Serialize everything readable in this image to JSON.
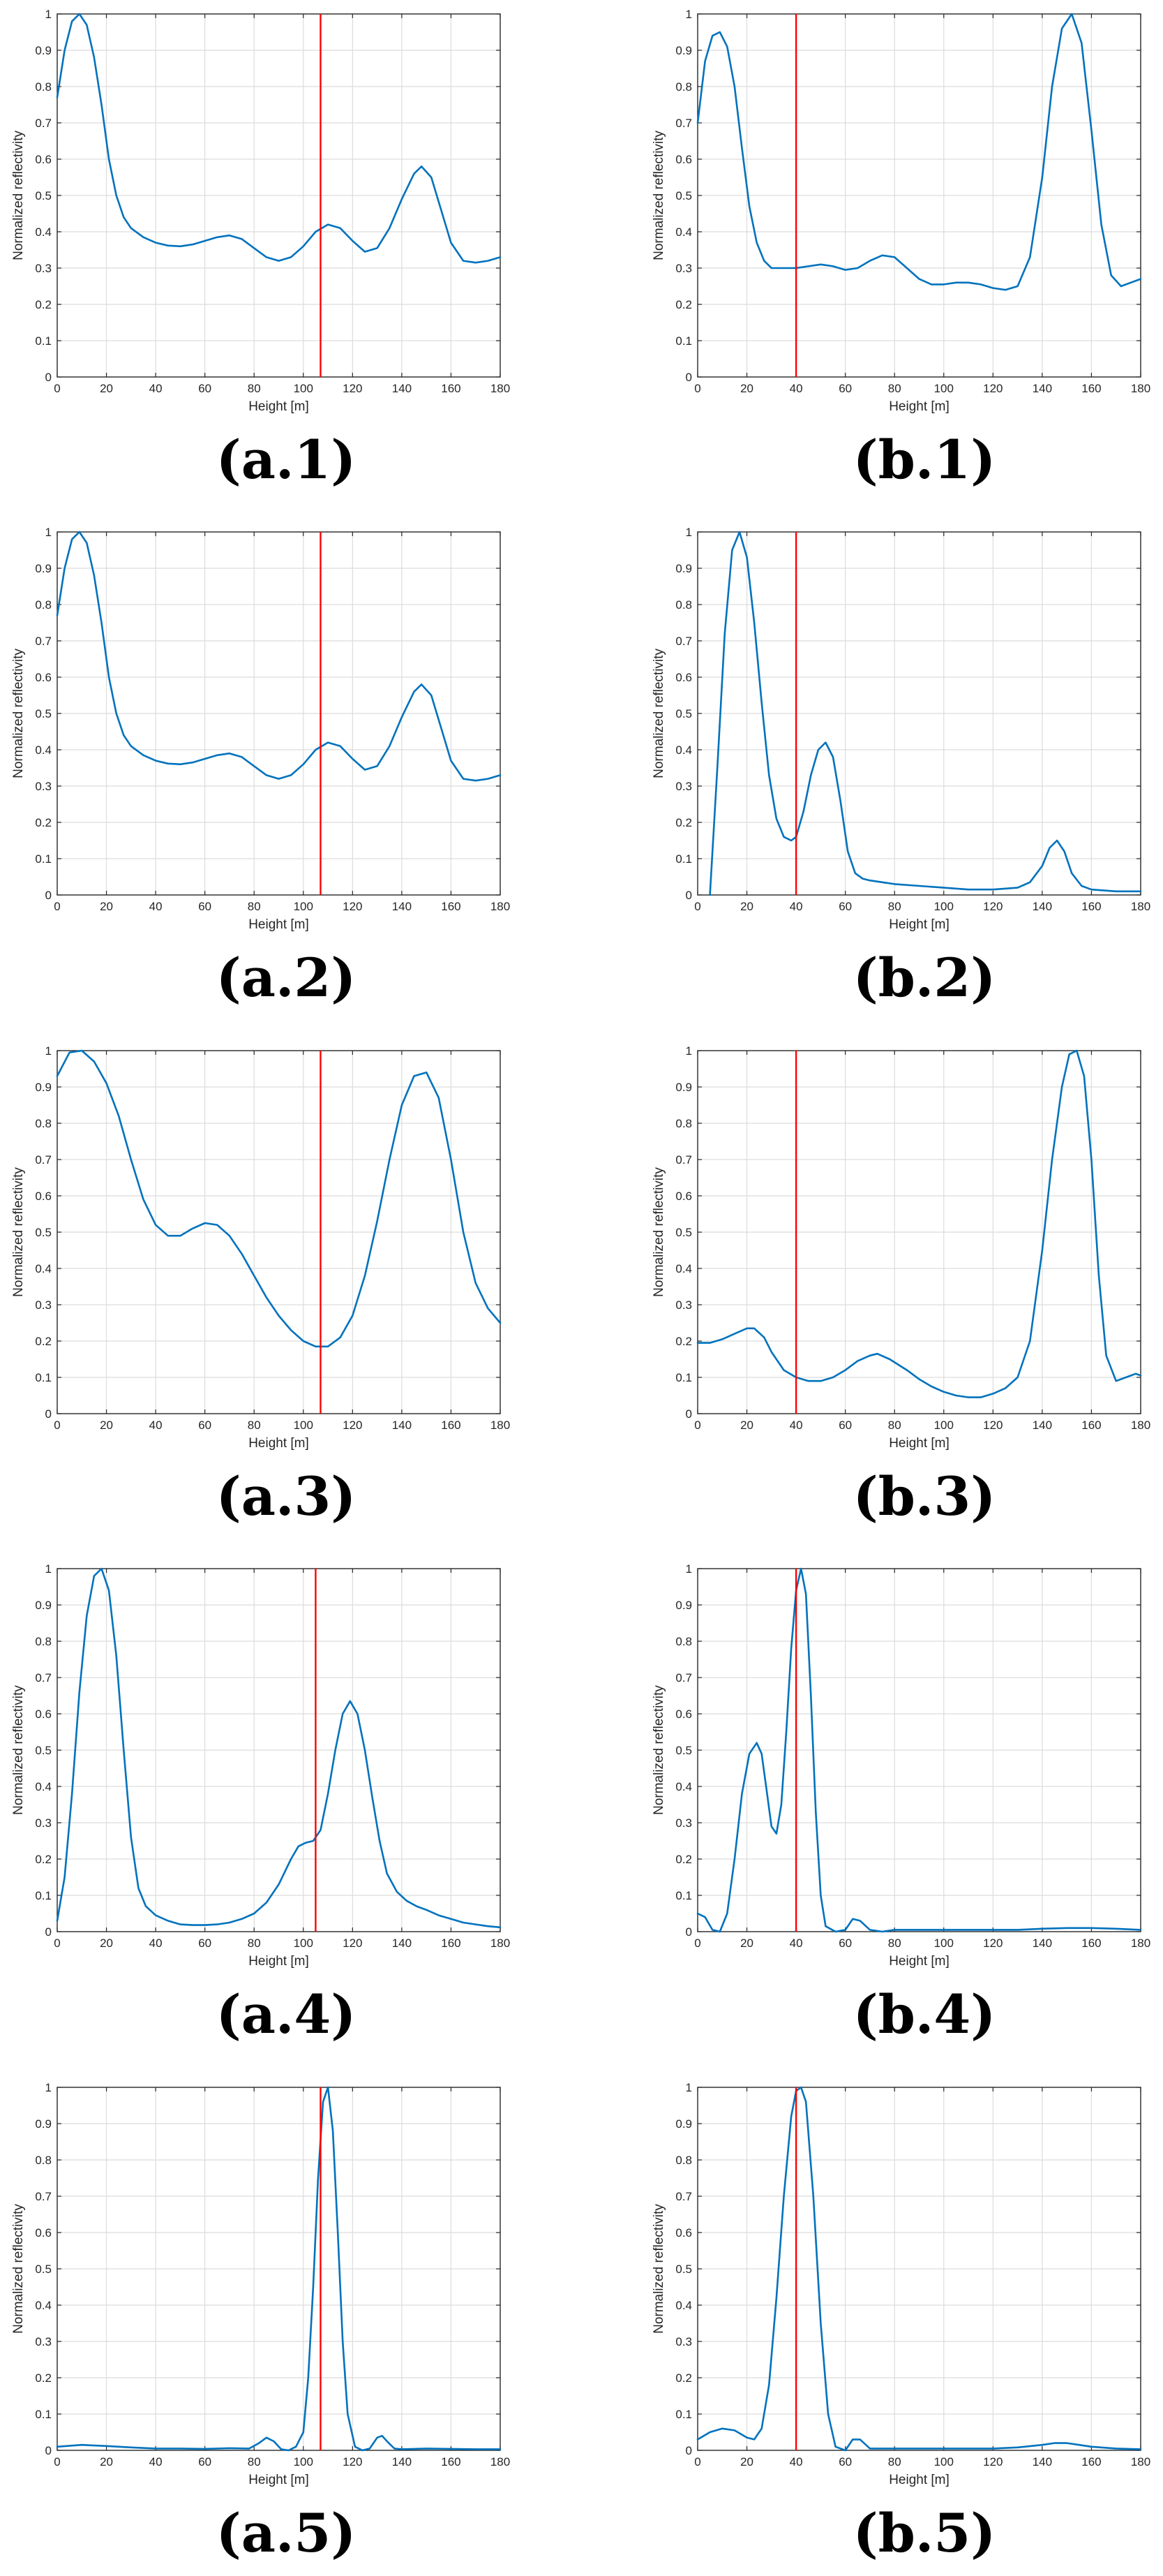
{
  "chart_data": [
    {
      "type": "line",
      "panel": "(a.1)",
      "xlabel": "Height [m]",
      "ylabel": "Normalized reflectivity",
      "xlim": [
        0,
        180
      ],
      "ylim": [
        0,
        1
      ],
      "xticks": [
        0,
        20,
        40,
        60,
        80,
        100,
        120,
        140,
        160,
        180
      ],
      "yticks": [
        0,
        0.1,
        0.2,
        0.3,
        0.4,
        0.5,
        0.6,
        0.7,
        0.8,
        0.9,
        1
      ],
      "grid": true,
      "series_color": "#0072BD",
      "marker_line": {
        "x": 107,
        "color": "#FF0000"
      },
      "x": [
        0,
        3,
        6,
        9,
        12,
        15,
        18,
        21,
        24,
        27,
        30,
        35,
        40,
        45,
        50,
        55,
        60,
        65,
        70,
        75,
        80,
        85,
        90,
        95,
        100,
        105,
        110,
        115,
        120,
        125,
        130,
        135,
        140,
        145,
        148,
        152,
        156,
        160,
        165,
        170,
        175,
        180
      ],
      "y": [
        0.77,
        0.9,
        0.98,
        1.0,
        0.97,
        0.88,
        0.75,
        0.6,
        0.5,
        0.44,
        0.41,
        0.385,
        0.37,
        0.362,
        0.36,
        0.365,
        0.375,
        0.385,
        0.39,
        0.38,
        0.355,
        0.33,
        0.32,
        0.33,
        0.36,
        0.4,
        0.42,
        0.41,
        0.375,
        0.345,
        0.355,
        0.41,
        0.49,
        0.56,
        0.58,
        0.55,
        0.46,
        0.37,
        0.32,
        0.315,
        0.32,
        0.33
      ]
    },
    {
      "type": "line",
      "panel": "(b.1)",
      "xlabel": "Height [m]",
      "ylabel": "Normalized reflectivity",
      "xlim": [
        0,
        180
      ],
      "ylim": [
        0,
        1
      ],
      "xticks": [
        0,
        20,
        40,
        60,
        80,
        100,
        120,
        140,
        160,
        180
      ],
      "yticks": [
        0,
        0.1,
        0.2,
        0.3,
        0.4,
        0.5,
        0.6,
        0.7,
        0.8,
        0.9,
        1
      ],
      "grid": true,
      "series_color": "#0072BD",
      "marker_line": {
        "x": 40,
        "color": "#FF0000"
      },
      "x": [
        0,
        3,
        6,
        9,
        12,
        15,
        18,
        21,
        24,
        27,
        30,
        35,
        40,
        45,
        50,
        55,
        60,
        65,
        70,
        75,
        80,
        85,
        90,
        95,
        100,
        105,
        110,
        115,
        120,
        125,
        130,
        135,
        140,
        144,
        148,
        152,
        156,
        160,
        164,
        168,
        172,
        176,
        180
      ],
      "y": [
        0.7,
        0.87,
        0.94,
        0.95,
        0.91,
        0.8,
        0.63,
        0.47,
        0.37,
        0.32,
        0.3,
        0.3,
        0.3,
        0.305,
        0.31,
        0.305,
        0.295,
        0.3,
        0.32,
        0.335,
        0.33,
        0.3,
        0.27,
        0.255,
        0.255,
        0.26,
        0.26,
        0.255,
        0.245,
        0.24,
        0.25,
        0.33,
        0.55,
        0.8,
        0.96,
        1.0,
        0.92,
        0.68,
        0.42,
        0.28,
        0.25,
        0.26,
        0.27
      ]
    },
    {
      "type": "line",
      "panel": "(a.2)",
      "xlabel": "Height [m]",
      "ylabel": "Normalized reflectivity",
      "xlim": [
        0,
        180
      ],
      "ylim": [
        0,
        1
      ],
      "xticks": [
        0,
        20,
        40,
        60,
        80,
        100,
        120,
        140,
        160,
        180
      ],
      "yticks": [
        0,
        0.1,
        0.2,
        0.3,
        0.4,
        0.5,
        0.6,
        0.7,
        0.8,
        0.9,
        1
      ],
      "grid": true,
      "series_color": "#0072BD",
      "marker_line": {
        "x": 107,
        "color": "#FF0000"
      },
      "x": [
        0,
        3,
        6,
        9,
        12,
        15,
        18,
        21,
        24,
        27,
        30,
        35,
        40,
        45,
        50,
        55,
        60,
        65,
        70,
        75,
        80,
        85,
        90,
        95,
        100,
        105,
        110,
        115,
        120,
        125,
        130,
        135,
        140,
        145,
        148,
        152,
        156,
        160,
        165,
        170,
        175,
        180
      ],
      "y": [
        0.77,
        0.9,
        0.98,
        1.0,
        0.97,
        0.88,
        0.75,
        0.6,
        0.5,
        0.44,
        0.41,
        0.385,
        0.37,
        0.362,
        0.36,
        0.365,
        0.375,
        0.385,
        0.39,
        0.38,
        0.355,
        0.33,
        0.32,
        0.33,
        0.36,
        0.4,
        0.42,
        0.41,
        0.375,
        0.345,
        0.355,
        0.41,
        0.49,
        0.56,
        0.58,
        0.55,
        0.46,
        0.37,
        0.32,
        0.315,
        0.32,
        0.33
      ]
    },
    {
      "type": "line",
      "panel": "(b.2)",
      "xlabel": "Height [m]",
      "ylabel": "Normalized reflectivity",
      "xlim": [
        0,
        180
      ],
      "ylim": [
        0,
        1
      ],
      "xticks": [
        0,
        20,
        40,
        60,
        80,
        100,
        120,
        140,
        160,
        180
      ],
      "yticks": [
        0,
        0.1,
        0.2,
        0.3,
        0.4,
        0.5,
        0.6,
        0.7,
        0.8,
        0.9,
        1
      ],
      "grid": true,
      "series_color": "#0072BD",
      "marker_line": {
        "x": 40,
        "color": "#FF0000"
      },
      "x": [
        5,
        8,
        11,
        14,
        17,
        20,
        23,
        26,
        29,
        32,
        35,
        38,
        40,
        43,
        46,
        49,
        52,
        55,
        58,
        61,
        64,
        67,
        70,
        80,
        90,
        100,
        110,
        120,
        130,
        135,
        140,
        143,
        146,
        149,
        152,
        156,
        160,
        170,
        180
      ],
      "y": [
        0.0,
        0.35,
        0.72,
        0.95,
        1.0,
        0.93,
        0.75,
        0.53,
        0.33,
        0.21,
        0.16,
        0.15,
        0.16,
        0.23,
        0.33,
        0.4,
        0.42,
        0.38,
        0.26,
        0.12,
        0.06,
        0.045,
        0.04,
        0.03,
        0.025,
        0.02,
        0.015,
        0.015,
        0.02,
        0.035,
        0.08,
        0.13,
        0.15,
        0.12,
        0.06,
        0.025,
        0.015,
        0.01,
        0.01
      ]
    },
    {
      "type": "line",
      "panel": "(a.3)",
      "xlabel": "Height [m]",
      "ylabel": "Normalized reflectivity",
      "xlim": [
        0,
        180
      ],
      "ylim": [
        0,
        1
      ],
      "xticks": [
        0,
        20,
        40,
        60,
        80,
        100,
        120,
        140,
        160,
        180
      ],
      "yticks": [
        0,
        0.1,
        0.2,
        0.3,
        0.4,
        0.5,
        0.6,
        0.7,
        0.8,
        0.9,
        1
      ],
      "grid": true,
      "series_color": "#0072BD",
      "marker_line": {
        "x": 107,
        "color": "#FF0000"
      },
      "x": [
        0,
        5,
        10,
        15,
        20,
        25,
        30,
        35,
        40,
        45,
        50,
        55,
        60,
        65,
        70,
        75,
        80,
        85,
        90,
        95,
        100,
        105,
        110,
        115,
        120,
        125,
        130,
        135,
        140,
        145,
        150,
        155,
        160,
        165,
        170,
        175,
        180
      ],
      "y": [
        0.93,
        0.995,
        1.0,
        0.97,
        0.91,
        0.82,
        0.7,
        0.59,
        0.52,
        0.49,
        0.49,
        0.51,
        0.525,
        0.52,
        0.49,
        0.44,
        0.38,
        0.32,
        0.27,
        0.23,
        0.2,
        0.185,
        0.185,
        0.21,
        0.27,
        0.38,
        0.53,
        0.7,
        0.85,
        0.93,
        0.94,
        0.87,
        0.7,
        0.5,
        0.36,
        0.29,
        0.25
      ]
    },
    {
      "type": "line",
      "panel": "(b.3)",
      "xlabel": "Height [m]",
      "ylabel": "Normalized reflectivity",
      "xlim": [
        0,
        180
      ],
      "ylim": [
        0,
        1
      ],
      "xticks": [
        0,
        20,
        40,
        60,
        80,
        100,
        120,
        140,
        160,
        180
      ],
      "yticks": [
        0,
        0.1,
        0.2,
        0.3,
        0.4,
        0.5,
        0.6,
        0.7,
        0.8,
        0.9,
        1
      ],
      "grid": true,
      "series_color": "#0072BD",
      "marker_line": {
        "x": 40,
        "color": "#FF0000"
      },
      "x": [
        0,
        5,
        10,
        15,
        20,
        23,
        27,
        30,
        35,
        40,
        45,
        50,
        55,
        60,
        65,
        70,
        73,
        78,
        85,
        90,
        95,
        100,
        105,
        110,
        115,
        120,
        125,
        130,
        135,
        140,
        144,
        148,
        151,
        154,
        157,
        160,
        163,
        166,
        170,
        174,
        178,
        180
      ],
      "y": [
        0.195,
        0.195,
        0.205,
        0.22,
        0.235,
        0.235,
        0.21,
        0.17,
        0.12,
        0.1,
        0.09,
        0.09,
        0.1,
        0.12,
        0.145,
        0.16,
        0.165,
        0.15,
        0.12,
        0.095,
        0.075,
        0.06,
        0.05,
        0.045,
        0.045,
        0.055,
        0.07,
        0.1,
        0.2,
        0.45,
        0.7,
        0.9,
        0.99,
        1.0,
        0.93,
        0.7,
        0.38,
        0.16,
        0.09,
        0.1,
        0.11,
        0.105
      ]
    },
    {
      "type": "line",
      "panel": "(a.4)",
      "xlabel": "Height [m]",
      "ylabel": "Normalized reflectivity",
      "xlim": [
        0,
        180
      ],
      "ylim": [
        0,
        1
      ],
      "xticks": [
        0,
        20,
        40,
        60,
        80,
        100,
        120,
        140,
        160,
        180
      ],
      "yticks": [
        0,
        0.1,
        0.2,
        0.3,
        0.4,
        0.5,
        0.6,
        0.7,
        0.8,
        0.9,
        1
      ],
      "grid": true,
      "series_color": "#0072BD",
      "marker_line": {
        "x": 105,
        "color": "#FF0000"
      },
      "x": [
        0,
        3,
        6,
        9,
        12,
        15,
        18,
        21,
        24,
        27,
        30,
        33,
        36,
        40,
        45,
        50,
        55,
        60,
        65,
        70,
        75,
        80,
        85,
        90,
        95,
        98,
        101,
        104,
        107,
        110,
        113,
        116,
        119,
        122,
        125,
        128,
        131,
        134,
        138,
        142,
        146,
        150,
        155,
        160,
        165,
        170,
        175,
        180
      ],
      "y": [
        0.03,
        0.15,
        0.38,
        0.66,
        0.87,
        0.98,
        1.0,
        0.94,
        0.76,
        0.5,
        0.26,
        0.12,
        0.07,
        0.045,
        0.03,
        0.02,
        0.018,
        0.018,
        0.02,
        0.025,
        0.035,
        0.05,
        0.08,
        0.13,
        0.2,
        0.235,
        0.245,
        0.25,
        0.28,
        0.38,
        0.5,
        0.6,
        0.635,
        0.6,
        0.5,
        0.37,
        0.25,
        0.16,
        0.11,
        0.085,
        0.07,
        0.06,
        0.045,
        0.035,
        0.025,
        0.02,
        0.015,
        0.012
      ]
    },
    {
      "type": "line",
      "panel": "(b.4)",
      "xlabel": "Height [m]",
      "ylabel": "Normalized reflectivity",
      "xlim": [
        0,
        180
      ],
      "ylim": [
        0,
        1
      ],
      "xticks": [
        0,
        20,
        40,
        60,
        80,
        100,
        120,
        140,
        160,
        180
      ],
      "yticks": [
        0,
        0.1,
        0.2,
        0.3,
        0.4,
        0.5,
        0.6,
        0.7,
        0.8,
        0.9,
        1
      ],
      "grid": true,
      "series_color": "#0072BD",
      "marker_line": {
        "x": 40,
        "color": "#FF0000"
      },
      "x": [
        0,
        3,
        6,
        9,
        12,
        15,
        18,
        21,
        24,
        26,
        28,
        30,
        32,
        34,
        36,
        38,
        40,
        42,
        44,
        46,
        48,
        50,
        52,
        56,
        60,
        63,
        66,
        70,
        75,
        80,
        90,
        100,
        110,
        120,
        130,
        140,
        150,
        160,
        170,
        180
      ],
      "y": [
        0.05,
        0.04,
        0.005,
        0.0,
        0.05,
        0.2,
        0.38,
        0.49,
        0.52,
        0.49,
        0.39,
        0.29,
        0.27,
        0.35,
        0.55,
        0.78,
        0.94,
        1.0,
        0.93,
        0.65,
        0.33,
        0.1,
        0.015,
        0.0,
        0.005,
        0.035,
        0.03,
        0.005,
        0.0,
        0.005,
        0.005,
        0.005,
        0.005,
        0.005,
        0.005,
        0.008,
        0.01,
        0.01,
        0.008,
        0.005
      ]
    },
    {
      "type": "line",
      "panel": "(a.5)",
      "xlabel": "Height [m]",
      "ylabel": "Normalized reflectivity",
      "xlim": [
        0,
        180
      ],
      "ylim": [
        0,
        1
      ],
      "xticks": [
        0,
        20,
        40,
        60,
        80,
        100,
        120,
        140,
        160,
        180
      ],
      "yticks": [
        0,
        0.1,
        0.2,
        0.3,
        0.4,
        0.5,
        0.6,
        0.7,
        0.8,
        0.9,
        1
      ],
      "grid": true,
      "series_color": "#0072BD",
      "marker_line": {
        "x": 107,
        "color": "#FF0000"
      },
      "x": [
        0,
        10,
        20,
        30,
        40,
        50,
        60,
        70,
        78,
        82,
        85,
        88,
        91,
        94,
        97,
        100,
        102,
        104,
        106,
        108,
        110,
        112,
        114,
        116,
        118,
        121,
        124,
        127,
        130,
        132,
        134,
        137,
        140,
        150,
        160,
        170,
        180
      ],
      "y": [
        0.01,
        0.015,
        0.012,
        0.008,
        0.005,
        0.005,
        0.004,
        0.006,
        0.005,
        0.02,
        0.035,
        0.025,
        0.003,
        0.0,
        0.01,
        0.05,
        0.2,
        0.45,
        0.75,
        0.96,
        1.0,
        0.88,
        0.6,
        0.3,
        0.1,
        0.01,
        0.0,
        0.005,
        0.035,
        0.04,
        0.025,
        0.005,
        0.003,
        0.005,
        0.004,
        0.003,
        0.003
      ]
    },
    {
      "type": "line",
      "panel": "(b.5)",
      "xlabel": "Height [m]",
      "ylabel": "Normalized reflectivity",
      "xlim": [
        0,
        180
      ],
      "ylim": [
        0,
        1
      ],
      "xticks": [
        0,
        20,
        40,
        60,
        80,
        100,
        120,
        140,
        160,
        180
      ],
      "yticks": [
        0,
        0.1,
        0.2,
        0.3,
        0.4,
        0.5,
        0.6,
        0.7,
        0.8,
        0.9,
        1
      ],
      "grid": true,
      "series_color": "#0072BD",
      "marker_line": {
        "x": 40,
        "color": "#FF0000"
      },
      "x": [
        0,
        5,
        10,
        15,
        20,
        23,
        26,
        29,
        32,
        35,
        38,
        40,
        42,
        44,
        47,
        50,
        53,
        56,
        60,
        63,
        66,
        70,
        80,
        90,
        100,
        110,
        120,
        130,
        140,
        145,
        150,
        155,
        160,
        170,
        180
      ],
      "y": [
        0.03,
        0.05,
        0.06,
        0.055,
        0.035,
        0.03,
        0.06,
        0.18,
        0.42,
        0.7,
        0.92,
        0.99,
        1.0,
        0.96,
        0.7,
        0.35,
        0.1,
        0.01,
        0.0,
        0.03,
        0.03,
        0.005,
        0.005,
        0.005,
        0.005,
        0.005,
        0.005,
        0.008,
        0.015,
        0.02,
        0.02,
        0.015,
        0.01,
        0.005,
        0.003
      ]
    }
  ]
}
